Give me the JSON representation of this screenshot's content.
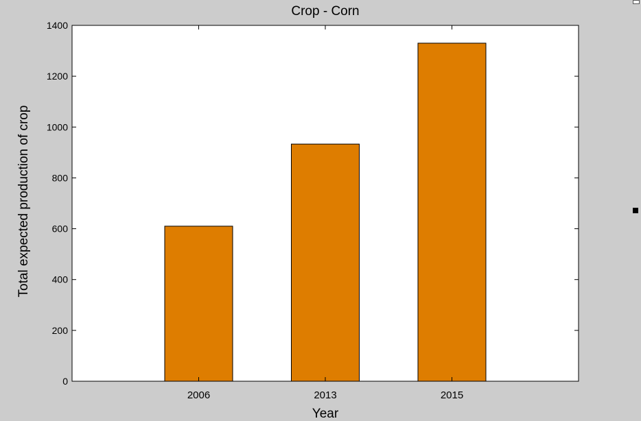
{
  "colors": {
    "figure_bg": "#cccccc",
    "plot_bg": "#ffffff",
    "bar_fill": "#de7d00",
    "bar_stroke": "#000000",
    "text": "#000000"
  },
  "chart_data": {
    "type": "bar",
    "title": "Crop - Corn",
    "xlabel": "Year",
    "ylabel": "Total expected production of crop",
    "categories": [
      "2006",
      "2013",
      "2015"
    ],
    "values": [
      610,
      933,
      1330
    ],
    "ylim": [
      0,
      1400
    ],
    "yticks": [
      0,
      200,
      400,
      600,
      800,
      1000,
      1200,
      1400
    ],
    "grid": false,
    "legend": "none"
  }
}
